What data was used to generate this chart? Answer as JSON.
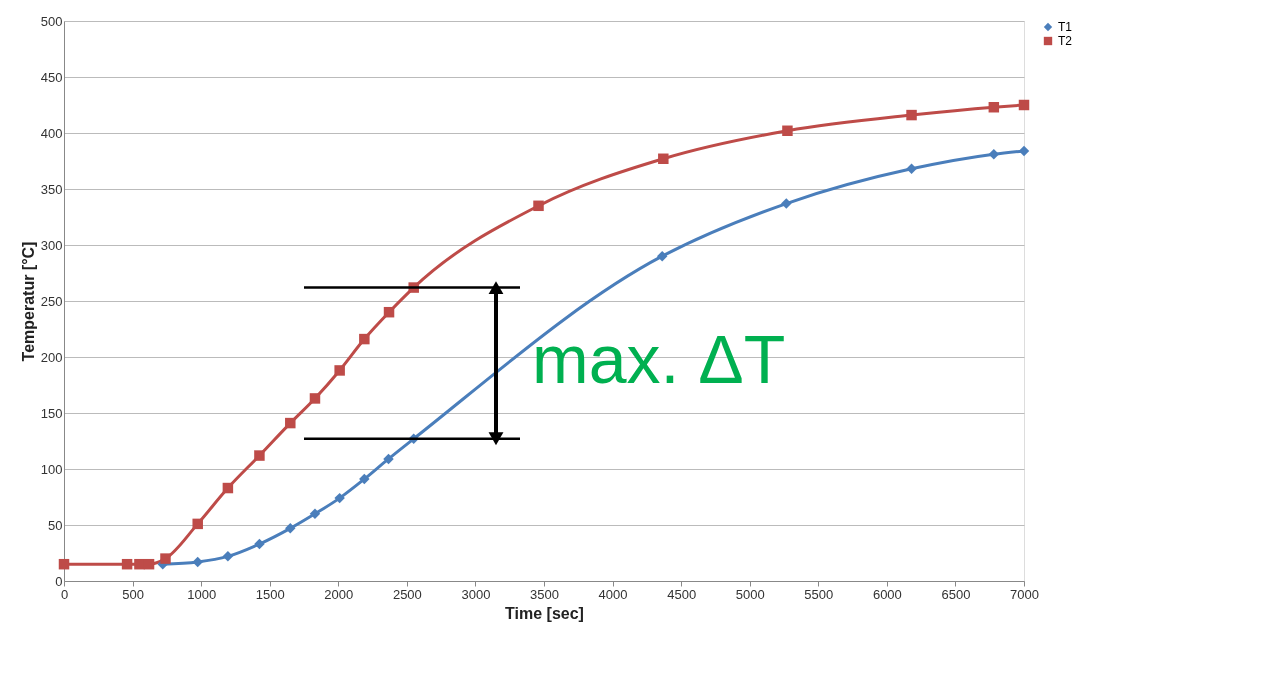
{
  "chart_data": {
    "type": "line",
    "xlabel": "Time [sec]",
    "ylabel": "Temperatur [°C]",
    "xlim": [
      0,
      7000
    ],
    "xticks": [
      0,
      500,
      1000,
      1500,
      2000,
      2500,
      3000,
      3500,
      4000,
      4500,
      5000,
      5500,
      6000,
      6500,
      7000
    ],
    "ylim": [
      0,
      500
    ],
    "yticks": [
      0,
      50,
      100,
      150,
      200,
      250,
      300,
      350,
      400,
      450,
      500
    ],
    "grid": "y",
    "legend": "right",
    "series": [
      {
        "name": "T1",
        "color": "#4a7ebb",
        "marker": "diamond",
        "x": [
          720,
          975,
          1195,
          1425,
          1650,
          1830,
          2010,
          2190,
          2366,
          2550,
          4362,
          5267,
          6180,
          6780,
          7000
        ],
        "values": [
          15,
          17,
          22,
          33,
          47,
          60,
          74,
          91,
          109,
          127,
          290,
          337,
          368,
          381,
          384
        ]
      },
      {
        "name": "T2",
        "color": "#be4b48",
        "marker": "square",
        "x": [
          0,
          460,
          550,
          620,
          740,
          975,
          1195,
          1425,
          1650,
          1830,
          2010,
          2190,
          2370,
          2550,
          3460,
          4370,
          5275,
          6180,
          6780,
          7000
        ],
        "values": [
          15,
          15,
          15,
          15,
          20,
          51,
          83,
          112,
          141,
          163,
          188,
          216,
          240,
          262,
          335,
          377,
          402,
          416,
          423,
          425
        ]
      }
    ],
    "ref_lines": [
      {
        "axis": "y",
        "value": 262,
        "color": "#000000"
      },
      {
        "axis": "y",
        "value": 127,
        "color": "#000000"
      }
    ],
    "annotations": [
      "max. ΔT"
    ]
  }
}
